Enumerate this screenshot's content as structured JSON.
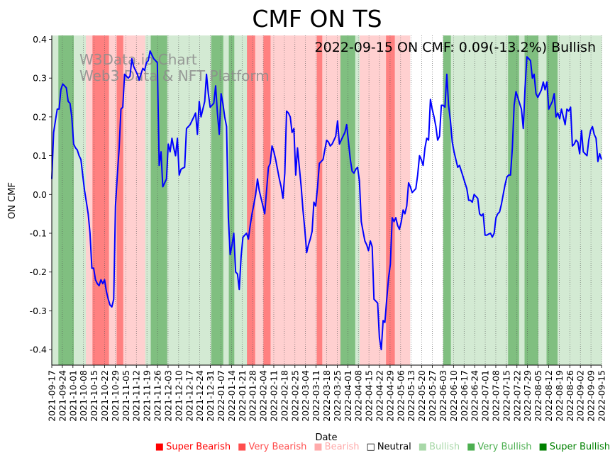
{
  "chart_data": {
    "type": "line",
    "title": "CMF ON TS",
    "xlabel": "Date",
    "ylabel": "ON CMF",
    "ylim": [
      -0.44,
      0.41
    ],
    "yticks": [
      "-0.4",
      "-0.3",
      "-0.2",
      "-0.1",
      "0.0",
      "0.1",
      "0.2",
      "0.3",
      "0.4"
    ],
    "ytick_values": [
      -0.4,
      -0.3,
      -0.2,
      -0.1,
      0.0,
      0.1,
      0.2,
      0.3,
      0.4
    ],
    "xtick_labels": [
      "2021-09-17",
      "2021-09-24",
      "2021-10-01",
      "2021-10-08",
      "2021-10-15",
      "2021-10-22",
      "2021-10-29",
      "2021-11-05",
      "2021-11-12",
      "2021-11-19",
      "2021-11-26",
      "2021-12-03",
      "2021-12-10",
      "2021-12-17",
      "2021-12-24",
      "2021-12-31",
      "2022-01-07",
      "2022-01-14",
      "2022-01-21",
      "2022-01-28",
      "2022-02-04",
      "2022-02-11",
      "2022-02-18",
      "2022-02-25",
      "2022-03-04",
      "2022-03-11",
      "2022-03-18",
      "2022-03-25",
      "2022-04-01",
      "2022-04-08",
      "2022-04-15",
      "2022-04-22",
      "2022-04-29",
      "2022-05-06",
      "2022-05-13",
      "2022-05-20",
      "2022-05-27",
      "2022-06-03",
      "2022-06-10",
      "2022-06-17",
      "2022-06-24",
      "2022-07-01",
      "2022-07-08",
      "2022-07-15",
      "2022-07-22",
      "2022-07-29",
      "2022-08-05",
      "2022-08-12",
      "2022-08-19",
      "2022-08-26",
      "2022-09-02",
      "2022-09-09",
      "2022-09-15"
    ],
    "annotation": "2022-09-15 ON CMF: 0.09(-13.2%) Bullish",
    "watermark": [
      "W3Data.io Chart",
      "Web3 Data & NFT Platform"
    ],
    "series": [
      {
        "name": "ON CMF",
        "color": "#0000ff",
        "values": [
          0.04,
          0.16,
          0.19,
          0.22,
          0.22,
          0.27,
          0.285,
          0.28,
          0.275,
          0.24,
          0.235,
          0.2,
          0.13,
          0.12,
          0.115,
          0.1,
          0.09,
          0.05,
          0.01,
          -0.02,
          -0.05,
          -0.1,
          -0.19,
          -0.19,
          -0.22,
          -0.23,
          -0.235,
          -0.22,
          -0.23,
          -0.22,
          -0.25,
          -0.27,
          -0.285,
          -0.29,
          -0.27,
          -0.03,
          0.05,
          0.12,
          0.22,
          0.225,
          0.31,
          0.305,
          0.3,
          0.305,
          0.35,
          0.33,
          0.32,
          0.31,
          0.295,
          0.31,
          0.325,
          0.32,
          0.34,
          0.345,
          0.37,
          0.36,
          0.35,
          0.345,
          0.34,
          0.075,
          0.11,
          0.02,
          0.03,
          0.04,
          0.13,
          0.11,
          0.145,
          0.12,
          0.1,
          0.145,
          0.05,
          0.065,
          0.068,
          0.07,
          0.17,
          0.175,
          0.18,
          0.19,
          0.2,
          0.21,
          0.155,
          0.24,
          0.2,
          0.22,
          0.24,
          0.31,
          0.26,
          0.225,
          0.23,
          0.235,
          0.28,
          0.21,
          0.155,
          0.26,
          0.235,
          0.2,
          0.175,
          -0.06,
          -0.155,
          -0.13,
          -0.1,
          -0.2,
          -0.205,
          -0.245,
          -0.16,
          -0.11,
          -0.105,
          -0.1,
          -0.115,
          -0.08,
          -0.05,
          -0.025,
          0.0,
          0.04,
          0.01,
          -0.01,
          -0.03,
          -0.05,
          0.01,
          0.07,
          0.08,
          0.125,
          0.11,
          0.09,
          0.065,
          0.04,
          0.02,
          -0.01,
          0.055,
          0.215,
          0.21,
          0.2,
          0.16,
          0.17,
          0.05,
          0.12,
          0.07,
          0.02,
          -0.04,
          -0.09,
          -0.15,
          -0.13,
          -0.115,
          -0.095,
          -0.02,
          -0.03,
          0.02,
          0.08,
          0.085,
          0.09,
          0.115,
          0.14,
          0.135,
          0.125,
          0.13,
          0.14,
          0.15,
          0.19,
          0.13,
          0.14,
          0.15,
          0.16,
          0.18,
          0.135,
          0.09,
          0.06,
          0.055,
          0.065,
          0.07,
          0.035,
          -0.07,
          -0.095,
          -0.12,
          -0.13,
          -0.145,
          -0.12,
          -0.135,
          -0.27,
          -0.275,
          -0.28,
          -0.37,
          -0.4,
          -0.325,
          -0.33,
          -0.27,
          -0.215,
          -0.18,
          -0.06,
          -0.07,
          -0.06,
          -0.08,
          -0.09,
          -0.07,
          -0.04,
          -0.05,
          -0.03,
          0.03,
          0.02,
          0.005,
          0.01,
          0.015,
          0.05,
          0.1,
          0.09,
          0.075,
          0.12,
          0.145,
          0.14,
          0.245,
          0.22,
          0.2,
          0.175,
          0.14,
          0.15,
          0.23,
          0.23,
          0.225,
          0.31,
          0.23,
          0.19,
          0.135,
          0.11,
          0.09,
          0.07,
          0.075,
          0.06,
          0.045,
          0.03,
          0.015,
          -0.015,
          -0.015,
          -0.02,
          0.0,
          -0.005,
          -0.01,
          -0.05,
          -0.055,
          -0.05,
          -0.105,
          -0.105,
          -0.102,
          -0.1,
          -0.11,
          -0.1,
          -0.06,
          -0.05,
          -0.045,
          -0.025,
          0.0,
          0.025,
          0.045,
          0.05,
          0.05,
          0.12,
          0.23,
          0.265,
          0.25,
          0.235,
          0.22,
          0.17,
          0.275,
          0.355,
          0.35,
          0.345,
          0.3,
          0.31,
          0.26,
          0.25,
          0.26,
          0.27,
          0.29,
          0.27,
          0.29,
          0.22,
          0.23,
          0.24,
          0.26,
          0.2,
          0.21,
          0.195,
          0.22,
          0.2,
          0.18,
          0.22,
          0.215,
          0.225,
          0.125,
          0.13,
          0.14,
          0.135,
          0.105,
          0.165,
          0.11,
          0.105,
          0.1,
          0.14,
          0.165,
          0.175,
          0.155,
          0.145,
          0.085,
          0.105,
          0.09
        ]
      }
    ],
    "regime_bands": [
      {
        "from": 0.0,
        "to": 0.012,
        "level": "bullish"
      },
      {
        "from": 0.012,
        "to": 0.04,
        "level": "very_bullish"
      },
      {
        "from": 0.04,
        "to": 0.062,
        "level": "bullish"
      },
      {
        "from": 0.062,
        "to": 0.074,
        "level": "bearish"
      },
      {
        "from": 0.074,
        "to": 0.104,
        "level": "very_bearish"
      },
      {
        "from": 0.104,
        "to": 0.118,
        "level": "bearish"
      },
      {
        "from": 0.118,
        "to": 0.13,
        "level": "very_bearish"
      },
      {
        "from": 0.13,
        "to": 0.17,
        "level": "bearish"
      },
      {
        "from": 0.17,
        "to": 0.18,
        "level": "bullish"
      },
      {
        "from": 0.18,
        "to": 0.21,
        "level": "very_bullish"
      },
      {
        "from": 0.21,
        "to": 0.29,
        "level": "bullish"
      },
      {
        "from": 0.29,
        "to": 0.312,
        "level": "very_bullish"
      },
      {
        "from": 0.312,
        "to": 0.322,
        "level": "bullish"
      },
      {
        "from": 0.322,
        "to": 0.332,
        "level": "very_bullish"
      },
      {
        "from": 0.332,
        "to": 0.355,
        "level": "bullish"
      },
      {
        "from": 0.355,
        "to": 0.37,
        "level": "very_bearish"
      },
      {
        "from": 0.37,
        "to": 0.385,
        "level": "bearish"
      },
      {
        "from": 0.385,
        "to": 0.398,
        "level": "very_bearish"
      },
      {
        "from": 0.398,
        "to": 0.402,
        "level": "bearish"
      },
      {
        "from": 0.402,
        "to": 0.482,
        "level": "bearish"
      },
      {
        "from": 0.482,
        "to": 0.492,
        "level": "very_bearish"
      },
      {
        "from": 0.492,
        "to": 0.525,
        "level": "bearish"
      },
      {
        "from": 0.525,
        "to": 0.552,
        "level": "very_bullish"
      },
      {
        "from": 0.552,
        "to": 0.56,
        "level": "bullish"
      },
      {
        "from": 0.56,
        "to": 0.608,
        "level": "bearish"
      },
      {
        "from": 0.608,
        "to": 0.624,
        "level": "very_bearish"
      },
      {
        "from": 0.624,
        "to": 0.652,
        "level": "bearish"
      },
      {
        "from": 0.652,
        "to": 0.712,
        "level": "neutral"
      },
      {
        "from": 0.712,
        "to": 0.726,
        "level": "very_bullish"
      },
      {
        "from": 0.726,
        "to": 0.76,
        "level": "bullish"
      },
      {
        "from": 0.76,
        "to": 0.83,
        "level": "bullish"
      },
      {
        "from": 0.83,
        "to": 0.85,
        "level": "very_bullish"
      },
      {
        "from": 0.85,
        "to": 0.86,
        "level": "bullish"
      },
      {
        "from": 0.86,
        "to": 0.885,
        "level": "very_bullish"
      },
      {
        "from": 0.885,
        "to": 0.9,
        "level": "bullish"
      },
      {
        "from": 0.9,
        "to": 0.92,
        "level": "very_bullish"
      },
      {
        "from": 0.92,
        "to": 1.0,
        "level": "bullish"
      }
    ],
    "regime_colors": {
      "super_bearish": "#ff0000",
      "very_bearish": "#ff8080",
      "bearish": "#ffd0d0",
      "neutral": "#ffffff",
      "bullish": "#d3ead3",
      "very_bullish": "#80bf80",
      "super_bullish": "#008000"
    },
    "legend": [
      {
        "label": "Super Bearish",
        "marker": "■",
        "color": "#ff0000"
      },
      {
        "label": "Very Bearish",
        "marker": "■",
        "color": "#ff4d4d"
      },
      {
        "label": "Bearish",
        "marker": "■",
        "color": "#ffaaaa"
      },
      {
        "label": "Neutral",
        "marker": "□",
        "color": "#000000"
      },
      {
        "label": "Bullish",
        "marker": "■",
        "color": "#a8d8a8"
      },
      {
        "label": "Very Bullish",
        "marker": "■",
        "color": "#4caf50"
      },
      {
        "label": "Super Bullish",
        "marker": "■",
        "color": "#008000"
      }
    ]
  }
}
